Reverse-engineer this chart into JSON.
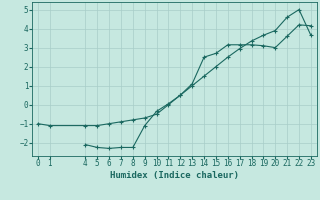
{
  "xlabel": "Humidex (Indice chaleur)",
  "background_color": "#c6e8e0",
  "grid_color": "#a8cec8",
  "line_color": "#1a6860",
  "line1_x": [
    0,
    1,
    4,
    5,
    6,
    7,
    8,
    9,
    10,
    11,
    12,
    13,
    14,
    15,
    16,
    17,
    18,
    19,
    20,
    21,
    22,
    23
  ],
  "line1_y": [
    -1.0,
    -1.1,
    -1.1,
    -1.1,
    -1.0,
    -0.9,
    -0.8,
    -0.7,
    -0.5,
    0.0,
    0.5,
    1.1,
    2.5,
    2.7,
    3.15,
    3.15,
    3.15,
    3.1,
    3.0,
    3.6,
    4.2,
    4.15
  ],
  "line2_x": [
    4,
    5,
    6,
    7,
    8,
    9,
    10,
    11,
    12,
    13,
    14,
    15,
    16,
    17,
    18,
    19,
    20,
    21,
    22,
    23
  ],
  "line2_y": [
    -2.1,
    -2.25,
    -2.3,
    -2.25,
    -2.25,
    -1.1,
    -0.35,
    0.05,
    0.5,
    1.0,
    1.5,
    2.0,
    2.5,
    2.95,
    3.35,
    3.65,
    3.9,
    4.6,
    5.0,
    3.65
  ],
  "ylim": [
    -2.7,
    5.4
  ],
  "xlim": [
    -0.5,
    23.5
  ],
  "yticks": [
    -2,
    -1,
    0,
    1,
    2,
    3,
    4,
    5
  ],
  "xticks": [
    0,
    1,
    4,
    5,
    6,
    7,
    8,
    9,
    10,
    11,
    12,
    13,
    14,
    15,
    16,
    17,
    18,
    19,
    20,
    21,
    22,
    23
  ],
  "tick_fontsize": 5.5,
  "xlabel_fontsize": 6.5
}
